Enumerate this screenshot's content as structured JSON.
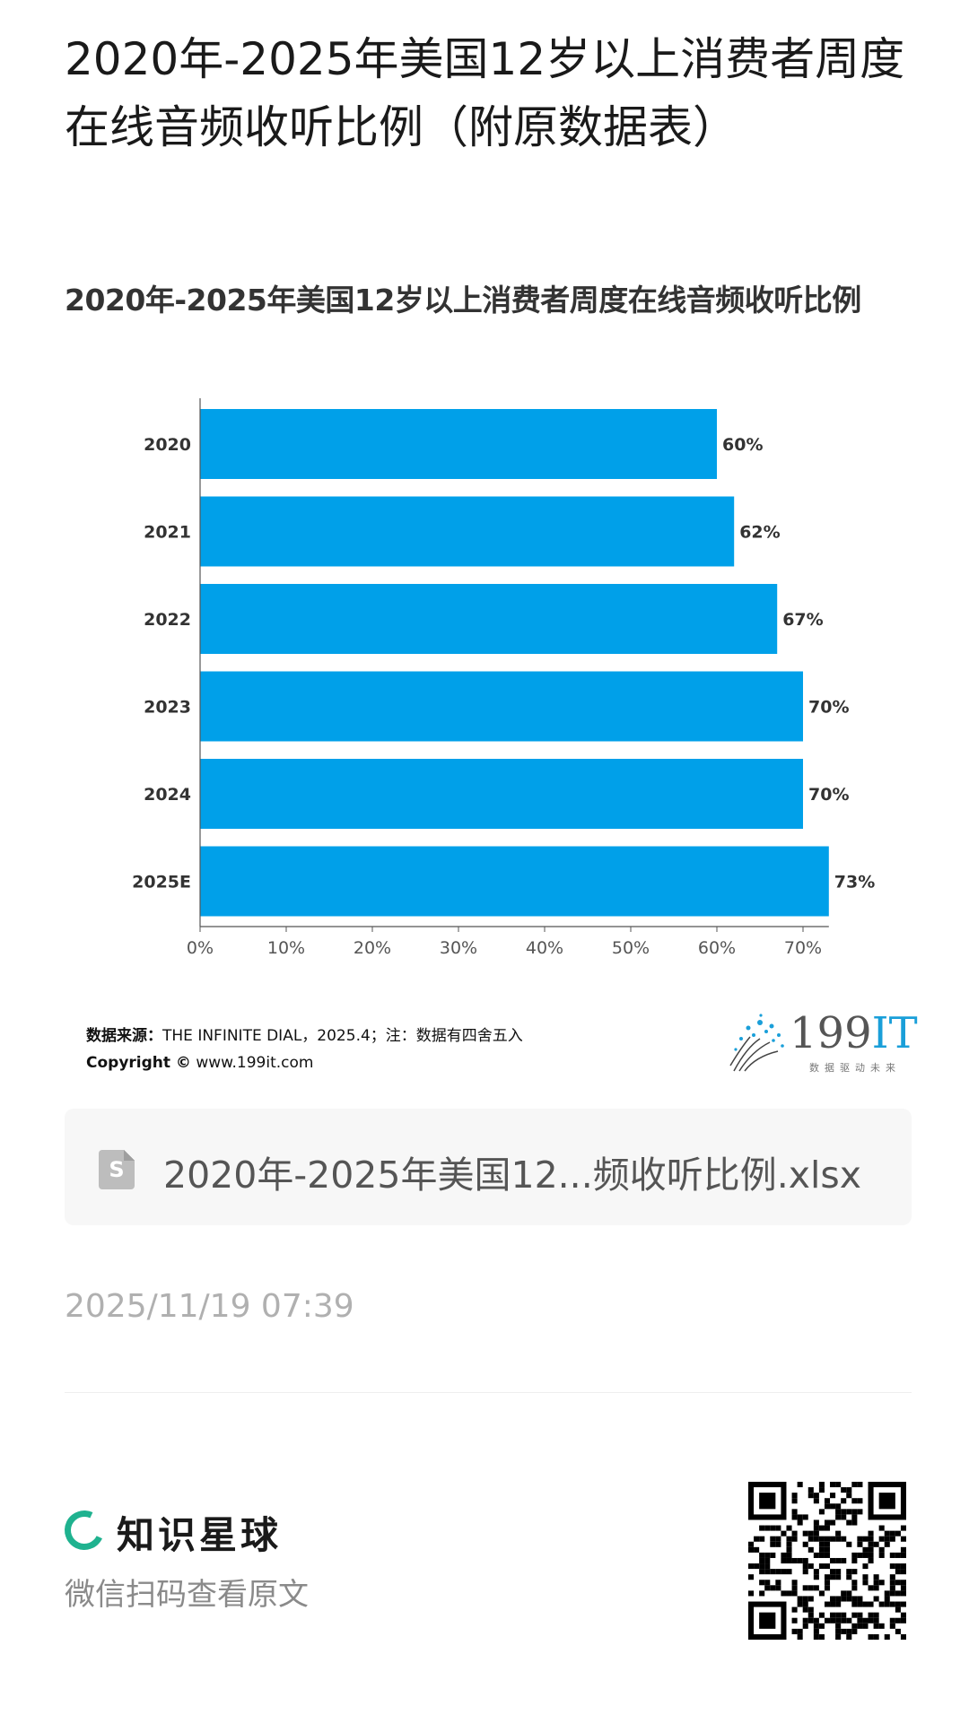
{
  "page": {
    "title": "2020年-2025年美国12岁以上消费者周度在线音频收听比例（附原数据表）"
  },
  "chart_title": "2020年-2025年美国12岁以上消费者周度在线音频收听比例",
  "chart_data": {
    "type": "bar",
    "orientation": "horizontal",
    "title": "2020年-2025年美国12岁以上消费者周度在线音频收听比例",
    "categories": [
      "2020",
      "2021",
      "2022",
      "2023",
      "2024",
      "2025E"
    ],
    "values": [
      60,
      62,
      67,
      70,
      70,
      73
    ],
    "value_labels": [
      "60%",
      "62%",
      "67%",
      "70%",
      "70%",
      "73%"
    ],
    "x_ticks": [
      "0%",
      "10%",
      "20%",
      "30%",
      "40%",
      "50%",
      "60%",
      "70%"
    ],
    "xlim": [
      0,
      73
    ],
    "bar_color": "#00A0E9",
    "grid": false,
    "legend": "none"
  },
  "source": {
    "label": "数据来源：",
    "text": "THE INFINITE DIAL，2025.4；注：数据有四舍五入",
    "copyright_label": "Copyright ©",
    "copyright_text": " www.199it.com"
  },
  "logo": {
    "number": "199",
    "it": "IT",
    "slogan": "数据驱动未来"
  },
  "file": {
    "icon_letter": "S",
    "name": "2020年-2025年美国12...频收听比例.xlsx"
  },
  "timestamp": "2025/11/19 07:39",
  "footer": {
    "brand": "知识星球",
    "scan_tip": "微信扫码查看原文"
  }
}
